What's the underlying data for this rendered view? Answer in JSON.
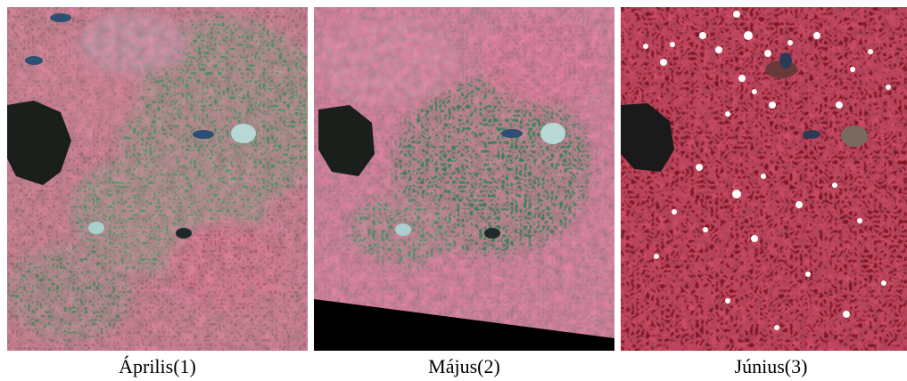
{
  "figure": {
    "panels": [
      {
        "caption": "Április(1)"
      },
      {
        "caption": "Május(2)"
      },
      {
        "caption": "Június(3)"
      }
    ]
  },
  "colors": {
    "april_base": "#b5707f",
    "april_vegetation": "#4f9a6a",
    "april_fields": "#e1476d",
    "may_base": "#c587a0",
    "may_vegetation": "#3f8a60",
    "may_fields": "#ec3f6c",
    "june_base": "#8c1c28",
    "june_fields": "#d8203a",
    "forest_dark": "#1a1f1c",
    "water": "#2d4f73",
    "cloud": "#ffffff",
    "background": "#ffffff"
  }
}
